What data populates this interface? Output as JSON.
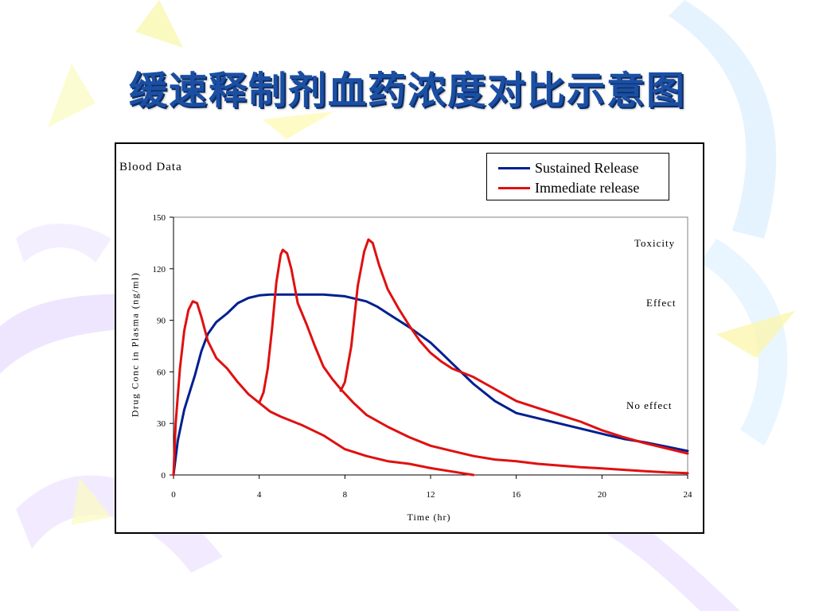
{
  "slide": {
    "title": "缓速释制剂血药浓度对比示意图"
  },
  "colors": {
    "sustained": "#001f8f",
    "immediate": "#e01010",
    "title": "#1a4fa3"
  },
  "chart_data": {
    "type": "line",
    "title": "Blood Data",
    "xlabel": "Time (hr)",
    "ylabel": "Drug Conc in Plasma (ng/ml)",
    "xlim": [
      0,
      24
    ],
    "ylim": [
      0,
      150
    ],
    "xticks": [
      0,
      4,
      8,
      12,
      16,
      20,
      24
    ],
    "yticks": [
      0,
      30,
      60,
      90,
      120,
      150
    ],
    "grid": false,
    "legend_position": "top-right",
    "legend": [
      "Sustained Release",
      "Immediate release"
    ],
    "annotations": [
      {
        "text": "Toxicity",
        "y": 134
      },
      {
        "text": "Effect",
        "y": 99
      },
      {
        "text": "No effect",
        "y": 40
      }
    ],
    "series": [
      {
        "name": "Sustained Release",
        "color": "#001f8f",
        "x": [
          0,
          0.2,
          0.5,
          0.8,
          1.0,
          1.3,
          1.6,
          2.0,
          2.5,
          3.0,
          3.5,
          4.0,
          4.5,
          5.0,
          6.0,
          7.0,
          8.0,
          9.0,
          9.5,
          10.0,
          11.0,
          12.0,
          12.5,
          13.0,
          14.0,
          15.0,
          16.0,
          17.0,
          18.0,
          19.0,
          20.0,
          21.0,
          22.0,
          23.0,
          24.0
        ],
        "y": [
          0,
          20,
          38,
          50,
          58,
          72,
          82,
          89,
          94,
          100,
          103,
          104.5,
          105,
          105,
          105,
          105,
          104,
          101,
          98,
          94,
          86,
          77,
          71,
          65,
          53,
          43,
          36,
          33,
          30,
          27,
          24,
          21,
          19,
          16.5,
          14
        ]
      },
      {
        "name": "Immediate release",
        "color": "#e01010",
        "x": [
          0,
          0.1,
          0.3,
          0.5,
          0.7,
          0.9,
          1.1,
          1.3,
          1.6,
          2.0,
          2.5,
          3.0,
          3.5,
          4.0,
          4.5,
          5.0,
          6.0,
          7.0,
          8.0,
          9.0,
          10.0,
          11.0,
          12.0,
          13.0,
          14.0
        ],
        "y": [
          0,
          30,
          62,
          84,
          96,
          101,
          100,
          92,
          78,
          68,
          62,
          54,
          47,
          42,
          37,
          34,
          29,
          23,
          15,
          11,
          8,
          6.5,
          4,
          2,
          0
        ]
      },
      {
        "name": "",
        "color": "#e01010",
        "x": [
          4.0,
          4.2,
          4.4,
          4.6,
          4.8,
          5.0,
          5.1,
          5.3,
          5.5,
          5.8,
          6.2,
          6.6,
          7.0,
          7.4,
          7.8,
          8.4,
          9.0,
          10.0,
          11.0,
          12.0,
          13.0,
          14.0,
          15.0,
          16.0,
          17.0,
          18.0,
          19.0,
          20.0,
          21.0,
          22.0,
          23.0,
          24.0
        ],
        "y": [
          42,
          48,
          62,
          85,
          112,
          128,
          131,
          129,
          120,
          100,
          88,
          75,
          63,
          56,
          50,
          42,
          35,
          28,
          22,
          17,
          14,
          11,
          9,
          8,
          6.5,
          5.5,
          4.5,
          3.8,
          3,
          2.2,
          1.5,
          1
        ]
      },
      {
        "name": "",
        "color": "#e01010",
        "x": [
          7.8,
          8.0,
          8.3,
          8.6,
          8.9,
          9.1,
          9.3,
          9.6,
          10.0,
          10.5,
          11.0,
          11.5,
          12.0,
          12.5,
          13.0,
          14.0,
          15.0,
          16.0,
          17.0,
          18.0,
          19.0,
          20.0,
          21.0,
          22.0,
          23.0,
          24.0
        ],
        "y": [
          49,
          54,
          75,
          110,
          130,
          137,
          135,
          122,
          108,
          97,
          87,
          78,
          71,
          66,
          62,
          57,
          50,
          43,
          39,
          35,
          31,
          26,
          22,
          18.5,
          15.5,
          12.5
        ]
      }
    ]
  }
}
